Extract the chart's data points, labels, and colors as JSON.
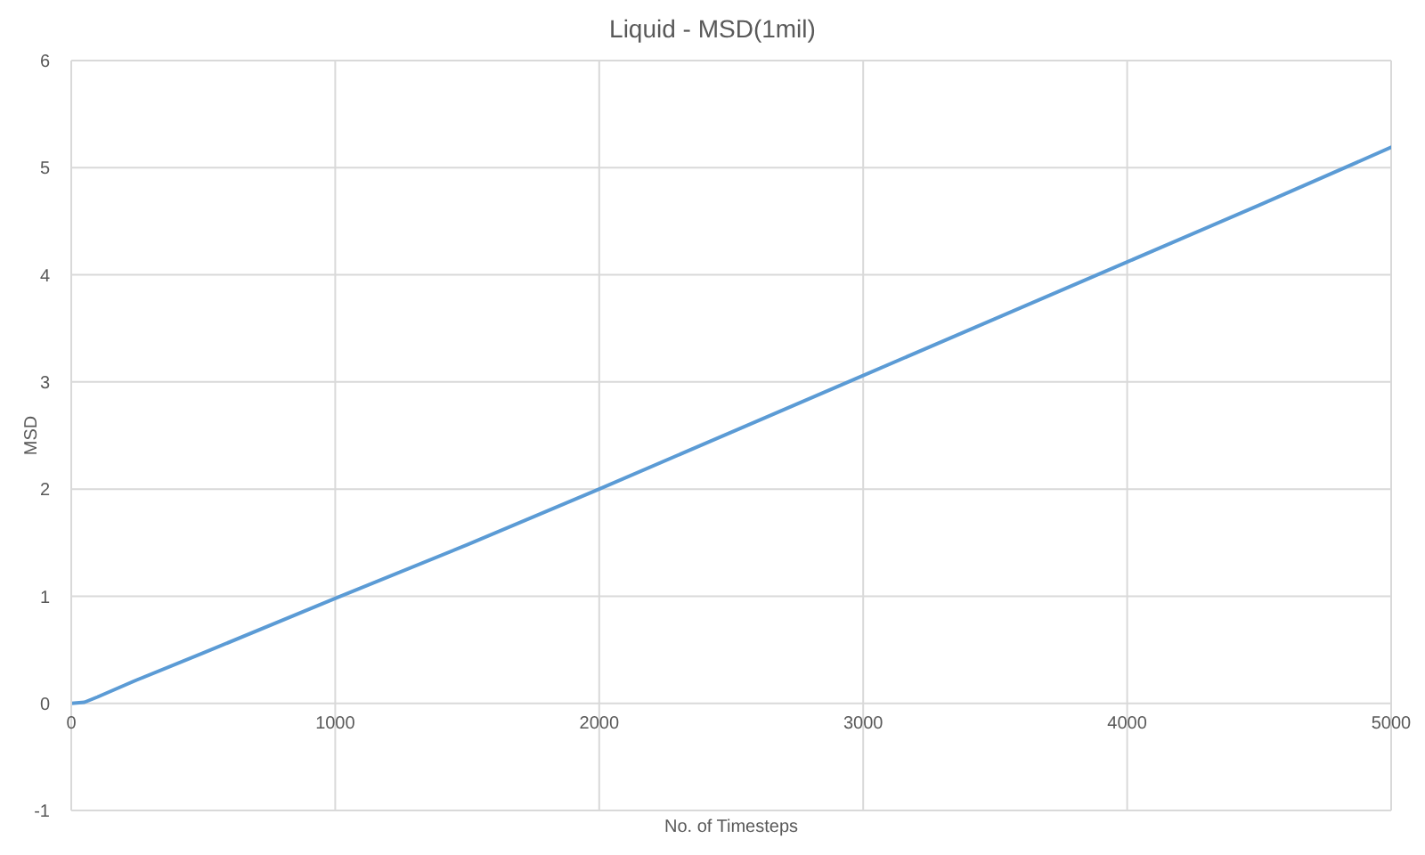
{
  "chart_data": {
    "type": "line",
    "title": "Liquid - MSD(1mil)",
    "xlabel": "No. of Timesteps",
    "ylabel": "MSD",
    "x": [
      0,
      50,
      100,
      250,
      500,
      1000,
      1500,
      2000,
      2500,
      3000,
      3500,
      4000,
      4500,
      5000
    ],
    "values": [
      0,
      0.01,
      0.06,
      0.22,
      0.47,
      0.98,
      1.48,
      2.0,
      2.53,
      3.06,
      3.59,
      4.12,
      4.65,
      5.19
    ],
    "color": "#5b9bd5",
    "xlim": [
      0,
      5000
    ],
    "xticks": [
      0,
      1000,
      2000,
      3000,
      4000,
      5000
    ],
    "ylim": [
      -1,
      6
    ],
    "yticks": [
      -1,
      0,
      1,
      2,
      3,
      4,
      5,
      6
    ],
    "grid": true
  }
}
